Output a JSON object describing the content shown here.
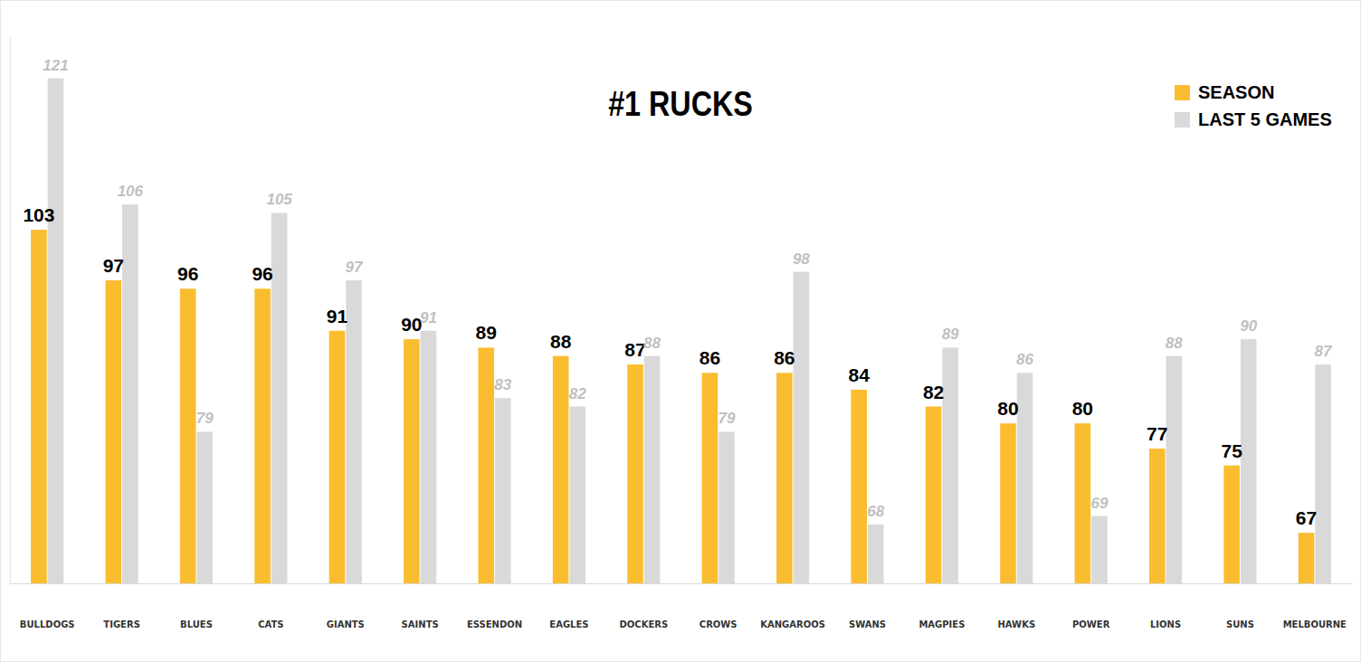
{
  "chart_data": {
    "type": "bar",
    "title": "#1 RUCKS",
    "categories": [
      "BULLDOGS",
      "TIGERS",
      "BLUES",
      "CATS",
      "GIANTS",
      "SAINTS",
      "ESSENDON",
      "EAGLES",
      "DOCKERS",
      "CROWS",
      "KANGAROOS",
      "SWANS",
      "MAGPIES",
      "HAWKS",
      "POWER",
      "LIONS",
      "SUNS",
      "MELBOURNE"
    ],
    "series": [
      {
        "name": "SEASON",
        "color": "#fbbd30",
        "values": [
          103,
          97,
          96,
          96,
          91,
          90,
          89,
          88,
          87,
          86,
          86,
          84,
          82,
          80,
          80,
          77,
          75,
          67
        ]
      },
      {
        "name": "LAST 5 GAMES",
        "color": "#d9d9d9",
        "values": [
          121,
          106,
          79,
          105,
          97,
          91,
          83,
          82,
          88,
          79,
          98,
          68,
          89,
          86,
          69,
          88,
          90,
          87
        ]
      }
    ],
    "ylim": [
      61,
      126
    ],
    "yticks": [],
    "grid": false,
    "legend": "top-right",
    "data_labels": true,
    "tick_labels": "x"
  }
}
